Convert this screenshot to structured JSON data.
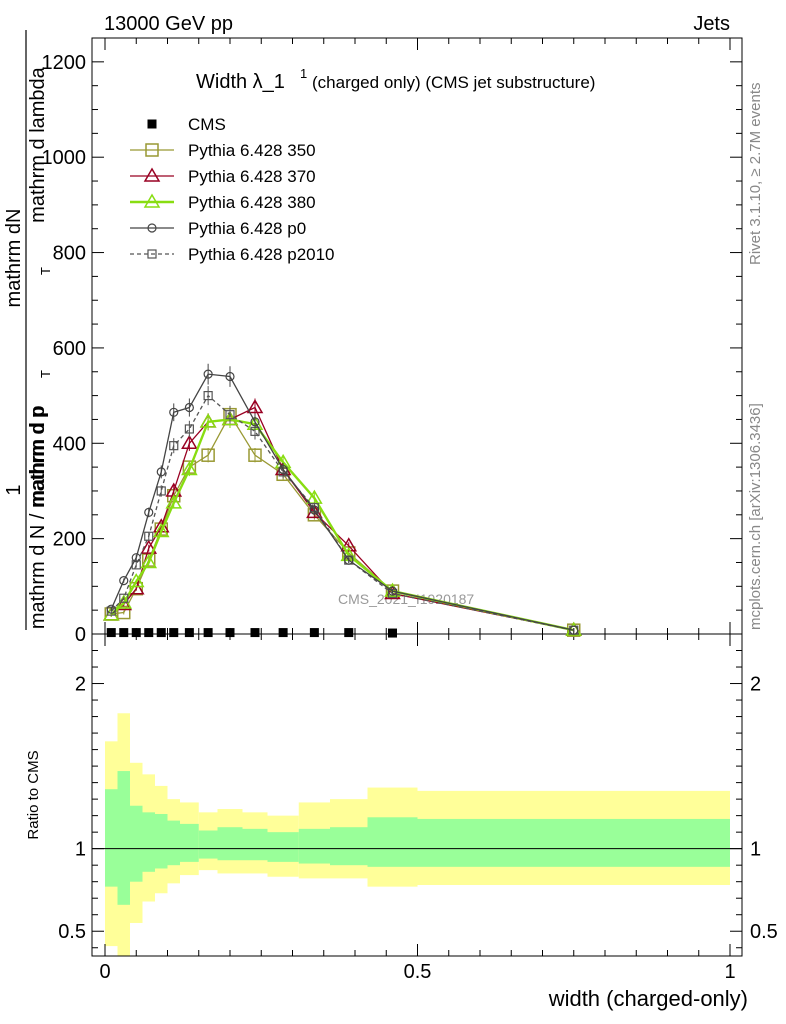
{
  "header": {
    "left": "13000 GeV pp",
    "right": "Jets"
  },
  "side_labels": {
    "rivet": "Rivet 3.1.10, ≥ 2.7M events",
    "mcplots": "mcplots.cern.ch [arXiv:1306.3436]"
  },
  "watermark": "CMS_2021_I1920187",
  "colors": {
    "cms": "#000000",
    "p350": "#999933",
    "p370": "#990022",
    "p380": "#88dd11",
    "p0": "#444444",
    "p2010": "#555555",
    "band_outer": "#ffff99",
    "band_inner": "#99ff99"
  },
  "chart_data": [
    {
      "type": "line",
      "title_main": "Width λ_1",
      "title_sup": "1",
      "title_rest": "(charged only) (CMS jet substructure)",
      "ylabel_num": "mathrm dN",
      "ylabel_den_a": "mathrm d p",
      "ylabel_den_a_sub": "T",
      "ylabel_den_b": "mathrm d lambda",
      "ylabel_lower_num": "1",
      "ylabel_lower_den": "mathrm d N / mathrm d p",
      "ylabel_lower_den_sub": "T",
      "xlim": [
        0,
        1
      ],
      "ylim": [
        0,
        1250
      ],
      "y_ticks": [
        0,
        200,
        400,
        600,
        800,
        1000,
        1200
      ],
      "y_tick_labels": [
        "0",
        "200",
        "400",
        "600",
        "800",
        "1000",
        "1200"
      ],
      "grid": false,
      "legend_position": "top-left",
      "series": [
        {
          "name": "CMS",
          "key": "cms",
          "marker": "filled-square",
          "x": [
            0.01,
            0.03,
            0.05,
            0.07,
            0.09,
            0.11,
            0.135,
            0.165,
            0.2,
            0.24,
            0.285,
            0.335,
            0.39,
            0.46
          ],
          "y": [
            3,
            3,
            3,
            3,
            3,
            3,
            3,
            3,
            3,
            3,
            3,
            3,
            3,
            2
          ]
        },
        {
          "name": "Pythia 6.428 350",
          "key": "p350",
          "marker": "open-square",
          "x": [
            0.01,
            0.03,
            0.05,
            0.07,
            0.09,
            0.11,
            0.135,
            0.165,
            0.2,
            0.24,
            0.285,
            0.335,
            0.39,
            0.46,
            0.75
          ],
          "y": [
            42,
            45,
            95,
            155,
            220,
            290,
            350,
            375,
            460,
            375,
            335,
            250,
            170,
            90,
            8
          ]
        },
        {
          "name": "Pythia 6.428 370",
          "key": "p370",
          "marker": "open-triangle",
          "x": [
            0.01,
            0.03,
            0.05,
            0.07,
            0.09,
            0.11,
            0.135,
            0.165,
            0.2,
            0.24,
            0.285,
            0.335,
            0.39,
            0.46,
            0.75
          ],
          "y": [
            40,
            62,
            95,
            180,
            225,
            300,
            400,
            445,
            450,
            475,
            345,
            255,
            185,
            85,
            8
          ]
        },
        {
          "name": "Pythia 6.428 380",
          "key": "p380",
          "marker": "open-triangle",
          "x": [
            0.01,
            0.03,
            0.05,
            0.07,
            0.09,
            0.11,
            0.135,
            0.165,
            0.2,
            0.24,
            0.285,
            0.335,
            0.39,
            0.46,
            0.75
          ],
          "y": [
            40,
            65,
            110,
            150,
            215,
            275,
            345,
            445,
            450,
            440,
            360,
            285,
            165,
            90,
            8
          ]
        },
        {
          "name": "Pythia 6.428 p0",
          "key": "p0",
          "marker": "open-circle",
          "x": [
            0.01,
            0.03,
            0.05,
            0.07,
            0.09,
            0.11,
            0.135,
            0.165,
            0.2,
            0.24,
            0.285,
            0.335,
            0.39,
            0.46,
            0.75
          ],
          "y": [
            52,
            112,
            160,
            255,
            340,
            465,
            475,
            545,
            540,
            445,
            345,
            260,
            155,
            90,
            8
          ]
        },
        {
          "name": "Pythia 6.428 p2010",
          "key": "p2010",
          "marker": "open-square-small",
          "x": [
            0.01,
            0.03,
            0.05,
            0.07,
            0.09,
            0.11,
            0.135,
            0.165,
            0.2,
            0.24,
            0.285,
            0.335,
            0.39,
            0.46,
            0.75
          ],
          "y": [
            48,
            75,
            145,
            205,
            300,
            395,
            430,
            500,
            460,
            425,
            340,
            265,
            155,
            85,
            8
          ]
        }
      ]
    },
    {
      "type": "area",
      "ylabel": "Ratio to CMS",
      "xlabel": "width (charged-only)",
      "xlim": [
        0,
        1
      ],
      "ylim": [
        0.35,
        2.3
      ],
      "x_ticks": [
        0,
        0.5,
        1
      ],
      "x_tick_labels": [
        "0",
        "0.5",
        "1"
      ],
      "y_ticks": [
        0.5,
        1,
        2
      ],
      "y_tick_labels": [
        "0.5",
        "1",
        "2"
      ],
      "reference_line": 1,
      "bins": [
        0.0,
        0.02,
        0.04,
        0.06,
        0.08,
        0.1,
        0.12,
        0.15,
        0.18,
        0.22,
        0.26,
        0.31,
        0.36,
        0.42,
        0.5,
        1.0
      ],
      "outer_band": {
        "low": [
          0.41,
          0.35,
          0.55,
          0.68,
          0.73,
          0.79,
          0.84,
          0.87,
          0.85,
          0.85,
          0.83,
          0.82,
          0.82,
          0.77,
          0.78
        ],
        "high": [
          1.65,
          1.82,
          1.52,
          1.45,
          1.38,
          1.3,
          1.28,
          1.22,
          1.24,
          1.22,
          1.2,
          1.28,
          1.3,
          1.37,
          1.35
        ]
      },
      "inner_band": {
        "low": [
          0.77,
          0.66,
          0.8,
          0.86,
          0.88,
          0.9,
          0.92,
          0.94,
          0.93,
          0.93,
          0.92,
          0.91,
          0.9,
          0.89,
          0.89
        ],
        "high": [
          1.36,
          1.47,
          1.26,
          1.22,
          1.21,
          1.17,
          1.15,
          1.11,
          1.13,
          1.12,
          1.1,
          1.12,
          1.13,
          1.19,
          1.18
        ]
      }
    }
  ]
}
